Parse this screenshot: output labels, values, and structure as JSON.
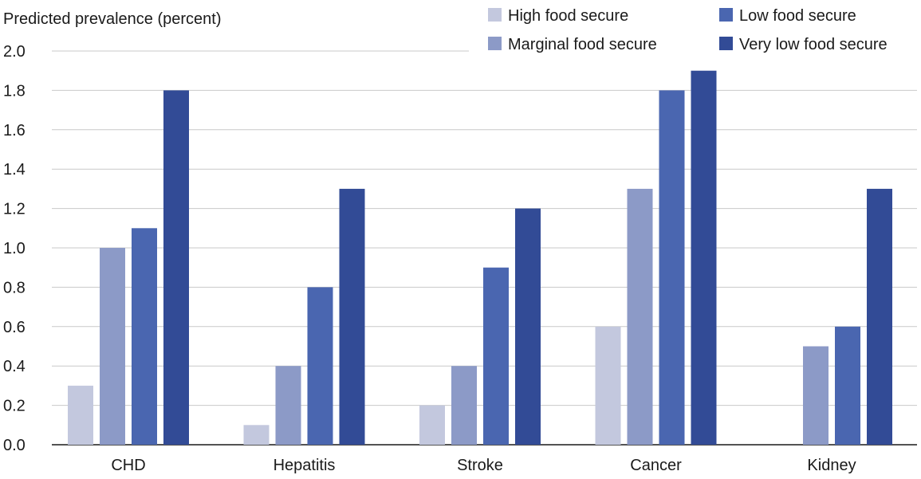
{
  "chart_data": {
    "type": "bar",
    "ylabel": "Predicted prevalence (percent)",
    "categories": [
      "CHD",
      "Hepatitis",
      "Stroke",
      "Cancer",
      "Kidney"
    ],
    "ylim": [
      0,
      2.0
    ],
    "yticks": [
      "0.0",
      "0.2",
      "0.4",
      "0.6",
      "0.8",
      "1.0",
      "1.2",
      "1.4",
      "1.6",
      "1.8",
      "2.0"
    ],
    "grid": true,
    "legend_position": "top-right",
    "series": [
      {
        "name": "High food secure",
        "color": "#c3c8de",
        "values": [
          0.3,
          0.1,
          0.2,
          0.6,
          null
        ]
      },
      {
        "name": "Marginal food secure",
        "color": "#8c9ac7",
        "values": [
          1.0,
          0.4,
          0.4,
          1.3,
          0.5
        ]
      },
      {
        "name": "Low food secure",
        "color": "#4a66b0",
        "values": [
          1.1,
          0.8,
          0.9,
          1.8,
          0.6
        ]
      },
      {
        "name": "Very low food secure",
        "color": "#324b96",
        "values": [
          1.8,
          1.3,
          1.2,
          1.9,
          1.3
        ]
      }
    ]
  }
}
